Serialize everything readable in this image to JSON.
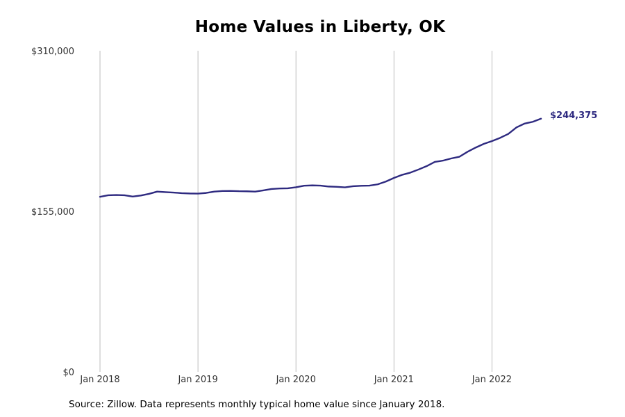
{
  "chart_data": {
    "type": "line",
    "title": "Home Values in Liberty, OK",
    "xlabel": "",
    "ylabel": "",
    "source": "Source: Zillow. Data represents monthly typical home value since January 2018.",
    "ylim": [
      0,
      310000
    ],
    "xlim": [
      "2018-01",
      "2022-07"
    ],
    "grid": "vertical",
    "y_ticks": [
      {
        "value": 0,
        "label": "$0"
      },
      {
        "value": 155000,
        "label": "$155,000"
      },
      {
        "value": 310000,
        "label": "$310,000"
      }
    ],
    "x_ticks": [
      {
        "value": "2018-01",
        "label": "Jan 2018"
      },
      {
        "value": "2019-01",
        "label": "Jan 2019"
      },
      {
        "value": "2020-01",
        "label": "Jan 2020"
      },
      {
        "value": "2021-01",
        "label": "Jan 2021"
      },
      {
        "value": "2022-01",
        "label": "Jan 2022"
      }
    ],
    "end_label": "$244,375",
    "series": [
      {
        "color": "#2e2a80",
        "x": [
          "2018-01",
          "2018-02",
          "2018-03",
          "2018-04",
          "2018-05",
          "2018-06",
          "2018-07",
          "2018-08",
          "2018-09",
          "2018-10",
          "2018-11",
          "2018-12",
          "2019-01",
          "2019-02",
          "2019-03",
          "2019-04",
          "2019-05",
          "2019-06",
          "2019-07",
          "2019-08",
          "2019-09",
          "2019-10",
          "2019-11",
          "2019-12",
          "2020-01",
          "2020-02",
          "2020-03",
          "2020-04",
          "2020-05",
          "2020-06",
          "2020-07",
          "2020-08",
          "2020-09",
          "2020-10",
          "2020-11",
          "2020-12",
          "2021-01",
          "2021-02",
          "2021-03",
          "2021-04",
          "2021-05",
          "2021-06",
          "2021-07",
          "2021-08",
          "2021-09",
          "2021-10",
          "2021-11",
          "2021-12",
          "2022-01",
          "2022-02",
          "2022-03",
          "2022-04",
          "2022-05",
          "2022-06",
          "2022-07"
        ],
        "values": [
          169000,
          170500,
          170700,
          170500,
          169200,
          170200,
          171800,
          174000,
          173500,
          173100,
          172500,
          172200,
          172100,
          172700,
          174000,
          174600,
          174700,
          174400,
          174300,
          174000,
          175200,
          176500,
          177000,
          177200,
          178200,
          179700,
          180000,
          179800,
          178900,
          178600,
          178100,
          179200,
          179600,
          179800,
          181000,
          183700,
          187200,
          190200,
          192300,
          195300,
          198600,
          202700,
          203900,
          206000,
          207600,
          212400,
          216500,
          220100,
          222800,
          225900,
          229700,
          236000,
          239700,
          241400,
          244375
        ]
      }
    ]
  }
}
